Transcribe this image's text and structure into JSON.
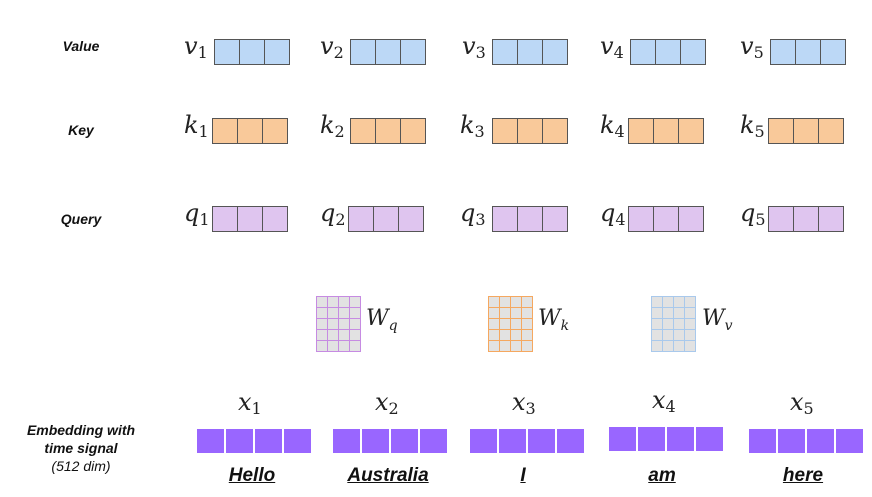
{
  "rows": {
    "value": {
      "label": "Value",
      "symbol": "v",
      "color": "#bcd8f6"
    },
    "key": {
      "label": "Key",
      "symbol": "k",
      "color": "#f9c99a"
    },
    "query": {
      "label": "Query",
      "symbol": "q",
      "color": "#dfc5ef"
    }
  },
  "indices": [
    "1",
    "2",
    "3",
    "4",
    "5"
  ],
  "embedding": {
    "label_line1": "Embedding with",
    "label_line2": "time signal",
    "label_dim": "(512 dim)",
    "symbol": "x",
    "color": "#9966ff"
  },
  "words": [
    "Hello",
    "Australia",
    "I",
    "am",
    "here"
  ],
  "weights": [
    {
      "symbol": "W",
      "sub": "q",
      "fill": "#e2e2e2",
      "border": "#c68be2"
    },
    {
      "symbol": "W",
      "sub": "k",
      "fill": "#e2e2e2",
      "border": "#f5a860"
    },
    {
      "symbol": "W",
      "sub": "v",
      "fill": "#e2e2e2",
      "border": "#a9c9ec"
    }
  ]
}
